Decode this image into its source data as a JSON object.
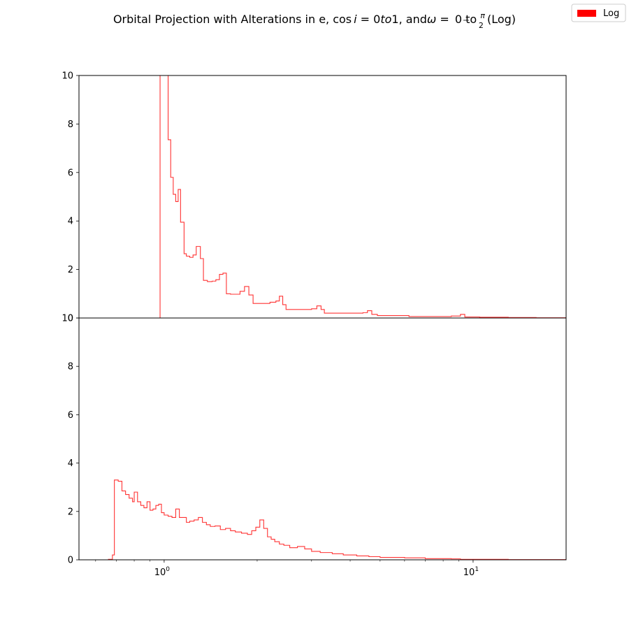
{
  "figure": {
    "title_parts": {
      "pre": "Orbital Projection with Alterations in e, ",
      "cos": "cos",
      "i_sym": "i",
      "eq": " = 0",
      "to_italic": "to",
      "one": "1, and",
      "omega": "ω",
      "eq_zero": " = ",
      "zero": "0",
      "to": " to ",
      "pi": "π",
      "two": "2",
      "log": " (Log)"
    },
    "legend": {
      "label": "Log",
      "color": "#ff0000"
    }
  },
  "chart_data": [
    {
      "type": "step",
      "panel": "top",
      "color": "#ff3333",
      "xscale": "log",
      "xlim": [
        0.53,
        20
      ],
      "ylim": [
        0,
        10
      ],
      "yticks": [
        0,
        2,
        4,
        6,
        8,
        10
      ],
      "ytick_labels": [
        "0",
        "2",
        "4",
        "6",
        "8",
        "10"
      ],
      "steps": [
        [
          0.53,
          0
        ],
        [
          0.97,
          10.5
        ],
        [
          1.0,
          10.5
        ],
        [
          1.03,
          7.35
        ],
        [
          1.05,
          5.8
        ],
        [
          1.07,
          5.1
        ],
        [
          1.09,
          4.8
        ],
        [
          1.11,
          5.3
        ],
        [
          1.13,
          3.95
        ],
        [
          1.16,
          2.65
        ],
        [
          1.18,
          2.55
        ],
        [
          1.21,
          2.5
        ],
        [
          1.24,
          2.6
        ],
        [
          1.27,
          2.95
        ],
        [
          1.31,
          2.45
        ],
        [
          1.34,
          1.55
        ],
        [
          1.38,
          1.5
        ],
        [
          1.43,
          1.52
        ],
        [
          1.47,
          1.58
        ],
        [
          1.51,
          1.8
        ],
        [
          1.55,
          1.85
        ],
        [
          1.59,
          1.0
        ],
        [
          1.64,
          0.98
        ],
        [
          1.7,
          0.98
        ],
        [
          1.76,
          1.1
        ],
        [
          1.82,
          1.3
        ],
        [
          1.88,
          0.95
        ],
        [
          1.94,
          0.6
        ],
        [
          2.0,
          0.6
        ],
        [
          2.1,
          0.6
        ],
        [
          2.2,
          0.65
        ],
        [
          2.3,
          0.7
        ],
        [
          2.36,
          0.9
        ],
        [
          2.42,
          0.55
        ],
        [
          2.48,
          0.35
        ],
        [
          2.6,
          0.35
        ],
        [
          2.8,
          0.35
        ],
        [
          3.0,
          0.38
        ],
        [
          3.12,
          0.5
        ],
        [
          3.22,
          0.35
        ],
        [
          3.3,
          0.2
        ],
        [
          3.6,
          0.2
        ],
        [
          4.0,
          0.2
        ],
        [
          4.4,
          0.22
        ],
        [
          4.55,
          0.3
        ],
        [
          4.7,
          0.15
        ],
        [
          4.9,
          0.1
        ],
        [
          5.5,
          0.1
        ],
        [
          6.2,
          0.06
        ],
        [
          7.0,
          0.06
        ],
        [
          8.5,
          0.08
        ],
        [
          9.1,
          0.15
        ],
        [
          9.4,
          0.04
        ],
        [
          10.5,
          0.03
        ],
        [
          13.0,
          0.02
        ],
        [
          16.0,
          0.01
        ],
        [
          20.0,
          0.01
        ]
      ]
    },
    {
      "type": "step",
      "panel": "bottom",
      "color": "#ff3333",
      "xscale": "log",
      "xlim": [
        0.53,
        20
      ],
      "ylim": [
        0,
        10
      ],
      "yticks": [
        0,
        2,
        4,
        6,
        8,
        10
      ],
      "ytick_labels": [
        "0",
        "2",
        "4",
        "6",
        "8",
        "10"
      ],
      "xticks": [
        1,
        10
      ],
      "xtick_labels": [
        [
          "10",
          "0"
        ],
        [
          "10",
          "1"
        ]
      ],
      "steps": [
        [
          0.53,
          0
        ],
        [
          0.66,
          0.02
        ],
        [
          0.68,
          0.2
        ],
        [
          0.69,
          3.3
        ],
        [
          0.71,
          3.25
        ],
        [
          0.73,
          2.85
        ],
        [
          0.75,
          2.7
        ],
        [
          0.77,
          2.55
        ],
        [
          0.79,
          2.4
        ],
        [
          0.8,
          2.8
        ],
        [
          0.82,
          2.4
        ],
        [
          0.84,
          2.25
        ],
        [
          0.86,
          2.15
        ],
        [
          0.88,
          2.4
        ],
        [
          0.9,
          2.05
        ],
        [
          0.92,
          2.1
        ],
        [
          0.94,
          2.25
        ],
        [
          0.96,
          2.3
        ],
        [
          0.98,
          1.95
        ],
        [
          1.0,
          1.85
        ],
        [
          1.03,
          1.8
        ],
        [
          1.06,
          1.75
        ],
        [
          1.09,
          2.1
        ],
        [
          1.12,
          1.75
        ],
        [
          1.15,
          1.75
        ],
        [
          1.18,
          1.55
        ],
        [
          1.21,
          1.6
        ],
        [
          1.25,
          1.65
        ],
        [
          1.29,
          1.75
        ],
        [
          1.33,
          1.55
        ],
        [
          1.37,
          1.45
        ],
        [
          1.41,
          1.38
        ],
        [
          1.46,
          1.4
        ],
        [
          1.52,
          1.25
        ],
        [
          1.58,
          1.3
        ],
        [
          1.64,
          1.2
        ],
        [
          1.7,
          1.15
        ],
        [
          1.78,
          1.1
        ],
        [
          1.86,
          1.05
        ],
        [
          1.92,
          1.2
        ],
        [
          1.98,
          1.35
        ],
        [
          2.04,
          1.65
        ],
        [
          2.1,
          1.3
        ],
        [
          2.16,
          0.95
        ],
        [
          2.22,
          0.85
        ],
        [
          2.28,
          0.75
        ],
        [
          2.36,
          0.65
        ],
        [
          2.44,
          0.6
        ],
        [
          2.55,
          0.5
        ],
        [
          2.7,
          0.55
        ],
        [
          2.85,
          0.45
        ],
        [
          3.0,
          0.35
        ],
        [
          3.2,
          0.3
        ],
        [
          3.5,
          0.25
        ],
        [
          3.8,
          0.2
        ],
        [
          4.2,
          0.16
        ],
        [
          4.6,
          0.13
        ],
        [
          5.0,
          0.1
        ],
        [
          6.0,
          0.08
        ],
        [
          7.0,
          0.05
        ],
        [
          8.5,
          0.04
        ],
        [
          9.1,
          0.02
        ],
        [
          10.0,
          0.02
        ],
        [
          13.0,
          0.01
        ],
        [
          16.0,
          0.01
        ],
        [
          20.0,
          0.0
        ]
      ]
    }
  ]
}
